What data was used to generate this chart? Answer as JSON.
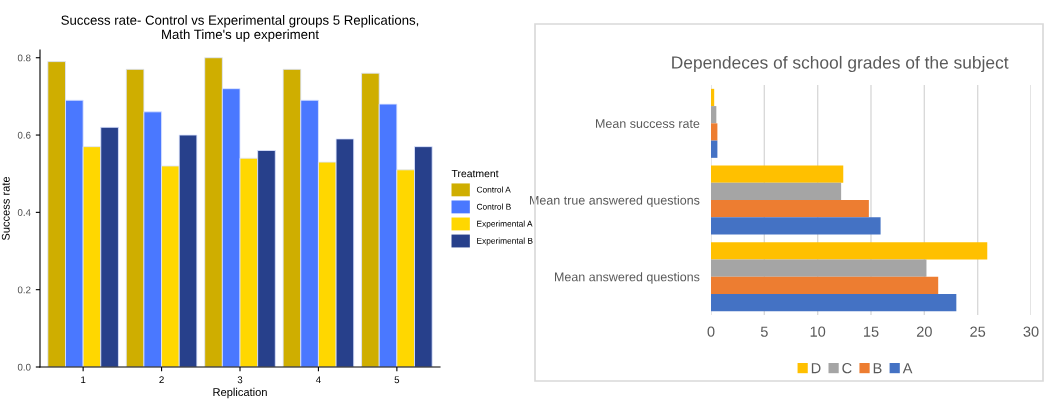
{
  "chart_data": [
    {
      "type": "bar",
      "title": "Success rate- Control vs Experimental groups 5 Replications,\nMath Time's up experiment",
      "xlabel": "Replication",
      "ylabel": "Success rate",
      "legend_title": "Treatment",
      "legend": "right",
      "categories": [
        "1",
        "2",
        "3",
        "4",
        "5"
      ],
      "ylim": [
        0,
        0.82
      ],
      "yticks": [
        {
          "value": 0,
          "label": "0.0"
        },
        0.2,
        0.4,
        0.6,
        0.8
      ],
      "grid": false,
      "series": [
        {
          "name": "Control A",
          "color": "#cfae00",
          "values": [
            0.79,
            0.77,
            0.8,
            0.77,
            0.76
          ]
        },
        {
          "name": "Control B",
          "color": "#4a78ff",
          "values": [
            0.69,
            0.66,
            0.72,
            0.69,
            0.68
          ]
        },
        {
          "name": "Experimental A",
          "color": "#ffd700",
          "values": [
            0.57,
            0.52,
            0.54,
            0.53,
            0.51
          ]
        },
        {
          "name": "Experimental B",
          "color": "#27408b",
          "values": [
            0.62,
            0.6,
            0.56,
            0.59,
            0.57
          ]
        }
      ]
    },
    {
      "type": "bar",
      "orientation": "horizontal",
      "title": "Dependeces of school grades of the subject",
      "legend": "bottom",
      "categories": [
        "Mean success rate",
        "Mean true answered questions",
        "Mean answered questions"
      ],
      "xlim": [
        0,
        30
      ],
      "xticks": [
        0,
        5,
        10,
        15,
        20,
        25,
        30
      ],
      "grid": "x",
      "series": [
        {
          "name": "D",
          "color": "#ffc000",
          "values": [
            0.3,
            12.4,
            25.9
          ]
        },
        {
          "name": "C",
          "color": "#a5a5a5",
          "values": [
            0.5,
            12.2,
            20.2
          ]
        },
        {
          "name": "B",
          "color": "#ed7d31",
          "values": [
            0.6,
            14.8,
            21.3
          ]
        },
        {
          "name": "A",
          "color": "#4472c4",
          "values": [
            0.6,
            15.9,
            23.0
          ]
        }
      ]
    }
  ]
}
